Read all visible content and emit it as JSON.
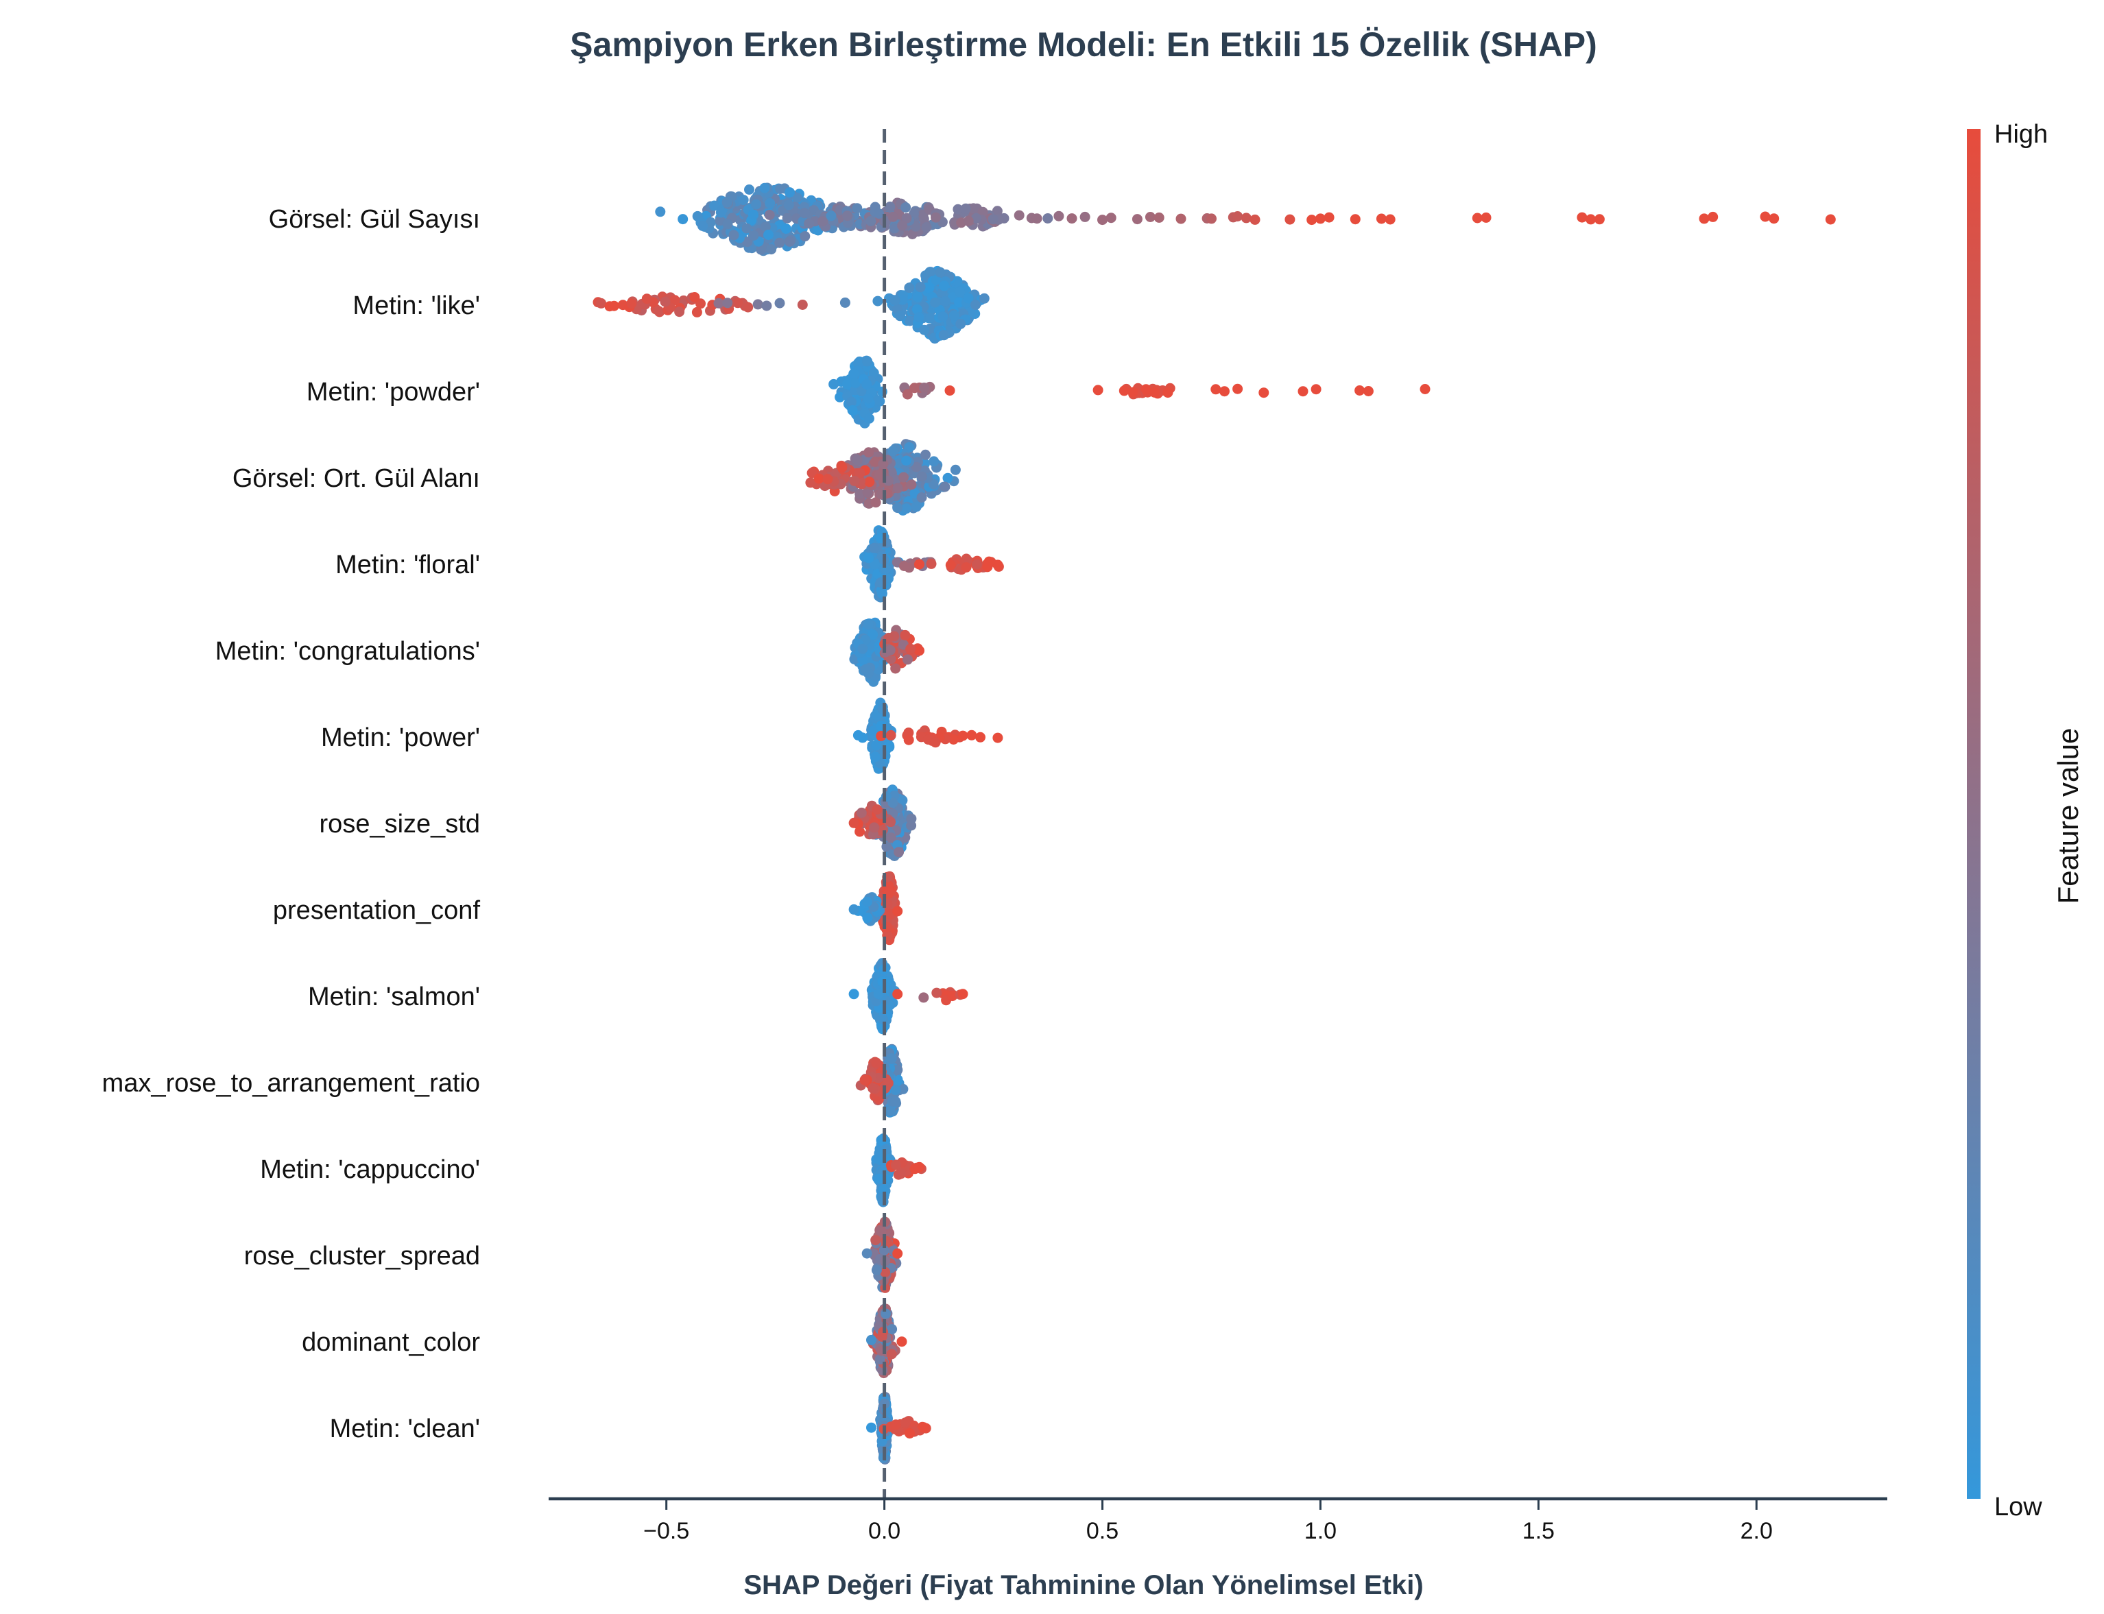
{
  "chart_data": {
    "type": "scatter",
    "subtype": "shap-beeswarm",
    "title": "Şampiyon Erken Birleştirme Modeli: En Etkili 15 Özellik (SHAP)",
    "xlabel": "SHAP Değeri (Fiyat Tahminine Olan Yönelimsel Etki)",
    "ylabel": "",
    "xlim": [
      -0.77,
      2.3
    ],
    "xticks": [
      -0.5,
      0.0,
      0.5,
      1.0,
      1.5,
      2.0
    ],
    "xtick_labels": [
      "−0.5",
      "0.0",
      "0.5",
      "1.0",
      "1.5",
      "2.0"
    ],
    "zero_line": {
      "x": 0.0,
      "style": "dashed"
    },
    "grid": false,
    "colorbar": {
      "label": "Feature value",
      "high_label": "High",
      "low_label": "Low",
      "high_color": "#e74c3c",
      "low_color": "#3498db",
      "position": "right"
    },
    "features": [
      {
        "name": "Görsel: Gül Sayısı",
        "clusters": [
          {
            "center": -0.27,
            "spread": 0.075,
            "count": 260,
            "color": [
              0.0,
              0.3
            ],
            "height": 1.0
          },
          {
            "center": -0.1,
            "spread": 0.06,
            "count": 60,
            "color": [
              0.15,
              0.45
            ],
            "height": 0.35
          },
          {
            "center": 0.04,
            "spread": 0.05,
            "count": 70,
            "color": [
              0.25,
              0.5
            ],
            "height": 0.55
          },
          {
            "center": 0.2,
            "spread": 0.06,
            "count": 40,
            "color": [
              0.35,
              0.55
            ],
            "height": 0.3
          }
        ],
        "points": [
          {
            "x": 0.35,
            "c": 0.55
          },
          {
            "x": 0.4,
            "c": 0.55
          },
          {
            "x": 0.43,
            "c": 0.6
          },
          {
            "x": 0.46,
            "c": 0.55
          },
          {
            "x": 0.5,
            "c": 0.6
          },
          {
            "x": 0.52,
            "c": 0.6
          },
          {
            "x": 0.58,
            "c": 0.6
          },
          {
            "x": 0.61,
            "c": 0.62
          },
          {
            "x": 0.63,
            "c": 0.65
          },
          {
            "x": 0.68,
            "c": 0.7
          },
          {
            "x": 0.74,
            "c": 0.7
          },
          {
            "x": 0.75,
            "c": 0.75
          },
          {
            "x": 0.8,
            "c": 0.8
          },
          {
            "x": 0.81,
            "c": 0.82
          },
          {
            "x": 0.83,
            "c": 0.85
          },
          {
            "x": 0.85,
            "c": 0.9
          },
          {
            "x": 0.93,
            "c": 0.95
          },
          {
            "x": 0.98,
            "c": 1.0
          },
          {
            "x": 1.0,
            "c": 1.0
          },
          {
            "x": 1.02,
            "c": 1.0
          },
          {
            "x": 1.08,
            "c": 1.0
          },
          {
            "x": 1.14,
            "c": 1.0
          },
          {
            "x": 1.16,
            "c": 1.0
          },
          {
            "x": 1.36,
            "c": 1.0
          },
          {
            "x": 1.38,
            "c": 1.0
          },
          {
            "x": 1.6,
            "c": 1.0
          },
          {
            "x": 1.62,
            "c": 1.0
          },
          {
            "x": 1.64,
            "c": 1.0
          },
          {
            "x": 1.88,
            "c": 1.0
          },
          {
            "x": 1.9,
            "c": 1.0
          },
          {
            "x": 2.02,
            "c": 1.0
          },
          {
            "x": 2.04,
            "c": 1.0
          },
          {
            "x": 2.17,
            "c": 1.0
          }
        ]
      },
      {
        "name": "Metin: 'like'",
        "clusters": [
          {
            "center": 0.12,
            "spread": 0.045,
            "count": 230,
            "color": [
              0.0,
              0.15
            ],
            "height": 1.0
          },
          {
            "center": -0.47,
            "spread": 0.09,
            "count": 45,
            "color": [
              0.75,
              1.0
            ],
            "height": 0.25
          }
        ],
        "points": [
          {
            "x": -0.63,
            "c": 1.0
          },
          {
            "x": -0.62,
            "c": 1.0
          },
          {
            "x": -0.58,
            "c": 0.95
          },
          {
            "x": -0.38,
            "c": 0.5
          },
          {
            "x": -0.36,
            "c": 0.45
          },
          {
            "x": -0.29,
            "c": 0.4
          },
          {
            "x": -0.27,
            "c": 0.35
          },
          {
            "x": -0.24,
            "c": 0.3
          },
          {
            "x": -0.09,
            "c": 0.2
          }
        ]
      },
      {
        "name": "Metin: 'powder'",
        "clusters": [
          {
            "center": -0.05,
            "spread": 0.02,
            "count": 120,
            "color": [
              0.0,
              0.1
            ],
            "height": 1.0
          },
          {
            "center": 0.07,
            "spread": 0.03,
            "count": 10,
            "color": [
              0.5,
              0.75
            ],
            "height": 0.2
          },
          {
            "center": 0.6,
            "spread": 0.04,
            "count": 14,
            "color": [
              0.9,
              1.0
            ],
            "height": 0.15
          }
        ],
        "points": [
          {
            "x": 0.15,
            "c": 1.0
          },
          {
            "x": 0.49,
            "c": 1.0
          },
          {
            "x": 0.55,
            "c": 1.0
          },
          {
            "x": 0.57,
            "c": 1.0
          },
          {
            "x": 0.6,
            "c": 1.0
          },
          {
            "x": 0.62,
            "c": 1.0
          },
          {
            "x": 0.65,
            "c": 1.0
          },
          {
            "x": 0.76,
            "c": 1.0
          },
          {
            "x": 0.78,
            "c": 1.0
          },
          {
            "x": 0.81,
            "c": 1.0
          },
          {
            "x": 0.87,
            "c": 1.0
          },
          {
            "x": 0.96,
            "c": 1.0
          },
          {
            "x": 0.99,
            "c": 1.0
          },
          {
            "x": 1.09,
            "c": 1.0
          },
          {
            "x": 1.11,
            "c": 1.0
          },
          {
            "x": 1.24,
            "c": 1.0
          }
        ]
      },
      {
        "name": "Görsel: Ort. Gül Alanı",
        "clusters": [
          {
            "center": 0.05,
            "spread": 0.04,
            "count": 170,
            "color": [
              0.0,
              0.35
            ],
            "height": 1.0
          },
          {
            "center": -0.03,
            "spread": 0.035,
            "count": 90,
            "color": [
              0.35,
              0.65
            ],
            "height": 0.8
          },
          {
            "center": -0.1,
            "spread": 0.035,
            "count": 40,
            "color": [
              0.75,
              1.0
            ],
            "height": 0.45
          }
        ],
        "points": [
          {
            "x": -0.15,
            "c": 1.0
          },
          {
            "x": -0.13,
            "c": 0.95
          }
        ]
      },
      {
        "name": "Metin: 'floral'",
        "clusters": [
          {
            "center": -0.01,
            "spread": 0.012,
            "count": 160,
            "color": [
              0.0,
              0.15
            ],
            "height": 1.0
          },
          {
            "center": 0.07,
            "spread": 0.03,
            "count": 12,
            "color": [
              0.4,
              0.65
            ],
            "height": 0.15
          },
          {
            "center": 0.2,
            "spread": 0.04,
            "count": 25,
            "color": [
              0.85,
              1.0
            ],
            "height": 0.2
          }
        ],
        "points": [
          {
            "x": 0.26,
            "c": 1.0
          },
          {
            "x": 0.24,
            "c": 1.0
          },
          {
            "x": 0.08,
            "c": 1.0
          }
        ]
      },
      {
        "name": "Metin: 'congratulations'",
        "clusters": [
          {
            "center": -0.03,
            "spread": 0.015,
            "count": 110,
            "color": [
              0.0,
              0.15
            ],
            "height": 1.0
          },
          {
            "center": 0.03,
            "spread": 0.02,
            "count": 50,
            "color": [
              0.5,
              1.0
            ],
            "height": 0.6
          }
        ],
        "points": [
          {
            "x": 0.08,
            "c": 1.0
          },
          {
            "x": 0.06,
            "c": 0.9
          },
          {
            "x": -0.05,
            "c": 0.1
          }
        ]
      },
      {
        "name": "Metin: 'power'",
        "clusters": [
          {
            "center": -0.01,
            "spread": 0.01,
            "count": 150,
            "color": [
              0.0,
              0.1
            ],
            "height": 1.0
          },
          {
            "center": 0.11,
            "spread": 0.04,
            "count": 22,
            "color": [
              0.9,
              1.0
            ],
            "height": 0.2
          }
        ],
        "points": [
          {
            "x": 0.18,
            "c": 1.0
          },
          {
            "x": 0.2,
            "c": 1.0
          },
          {
            "x": 0.22,
            "c": 1.0
          },
          {
            "x": 0.26,
            "c": 1.0
          },
          {
            "x": -0.05,
            "c": 0.0
          },
          {
            "x": -0.06,
            "c": 0.0
          }
        ]
      },
      {
        "name": "rose_size_std",
        "clusters": [
          {
            "center": 0.02,
            "spread": 0.02,
            "count": 120,
            "color": [
              0.0,
              0.45
            ],
            "height": 1.0
          },
          {
            "center": -0.03,
            "spread": 0.02,
            "count": 50,
            "color": [
              0.65,
              1.0
            ],
            "height": 0.5
          }
        ],
        "points": [
          {
            "x": -0.06,
            "c": 1.0
          },
          {
            "x": -0.07,
            "c": 0.95
          }
        ]
      },
      {
        "name": "presentation_conf",
        "clusters": [
          {
            "center": 0.01,
            "spread": 0.008,
            "count": 120,
            "color": [
              0.85,
              1.0
            ],
            "height": 1.0
          },
          {
            "center": -0.03,
            "spread": 0.012,
            "count": 45,
            "color": [
              0.0,
              0.15
            ],
            "height": 0.35
          }
        ],
        "points": [
          {
            "x": -0.06,
            "c": 0.0
          },
          {
            "x": -0.07,
            "c": 0.05
          },
          {
            "x": 0.03,
            "c": 1.0
          }
        ]
      },
      {
        "name": "Metin: 'salmon'",
        "clusters": [
          {
            "center": -0.005,
            "spread": 0.01,
            "count": 160,
            "color": [
              0.0,
              0.1
            ],
            "height": 1.0
          },
          {
            "center": 0.14,
            "spread": 0.02,
            "count": 8,
            "color": [
              0.85,
              1.0
            ],
            "height": 0.15
          }
        ],
        "points": [
          {
            "x": -0.07,
            "c": 0.0
          },
          {
            "x": 0.03,
            "c": 1.0
          },
          {
            "x": 0.09,
            "c": 0.6
          },
          {
            "x": 0.18,
            "c": 1.0
          }
        ]
      },
      {
        "name": "max_rose_to_arrangement_ratio",
        "clusters": [
          {
            "center": 0.015,
            "spread": 0.01,
            "count": 110,
            "color": [
              0.0,
              0.3
            ],
            "height": 1.0
          },
          {
            "center": -0.02,
            "spread": 0.012,
            "count": 45,
            "color": [
              0.75,
              1.0
            ],
            "height": 0.6
          }
        ],
        "points": [
          {
            "x": -0.04,
            "c": 1.0
          },
          {
            "x": -0.045,
            "c": 0.95
          }
        ]
      },
      {
        "name": "Metin: 'cappuccino'",
        "clusters": [
          {
            "center": -0.003,
            "spread": 0.006,
            "count": 150,
            "color": [
              0.0,
              0.1
            ],
            "height": 1.0
          },
          {
            "center": 0.04,
            "spread": 0.02,
            "count": 18,
            "color": [
              0.85,
              1.0
            ],
            "height": 0.2
          }
        ],
        "points": [
          {
            "x": 0.08,
            "c": 1.0
          },
          {
            "x": 0.07,
            "c": 1.0
          }
        ]
      },
      {
        "name": "rose_cluster_spread",
        "clusters": [
          {
            "center": 0.0,
            "spread": 0.012,
            "count": 110,
            "color": [
              0.2,
              1.0
            ],
            "height": 1.0
          }
        ],
        "points": [
          {
            "x": -0.04,
            "c": 0.2
          },
          {
            "x": 0.03,
            "c": 1.0
          }
        ]
      },
      {
        "name": "dominant_color",
        "clusters": [
          {
            "center": 0.0,
            "spread": 0.01,
            "count": 120,
            "color": [
              0.1,
              0.9
            ],
            "height": 1.0
          }
        ],
        "points": [
          {
            "x": 0.04,
            "c": 1.0
          },
          {
            "x": -0.03,
            "c": 0.1
          }
        ]
      },
      {
        "name": "Metin: 'clean'",
        "clusters": [
          {
            "center": 0.0,
            "spread": 0.004,
            "count": 140,
            "color": [
              0.0,
              0.3
            ],
            "height": 1.0
          },
          {
            "center": 0.05,
            "spread": 0.02,
            "count": 22,
            "color": [
              0.9,
              1.0
            ],
            "height": 0.2
          }
        ],
        "points": [
          {
            "x": -0.03,
            "c": 0.0
          },
          {
            "x": 0.09,
            "c": 1.0
          }
        ]
      }
    ]
  }
}
